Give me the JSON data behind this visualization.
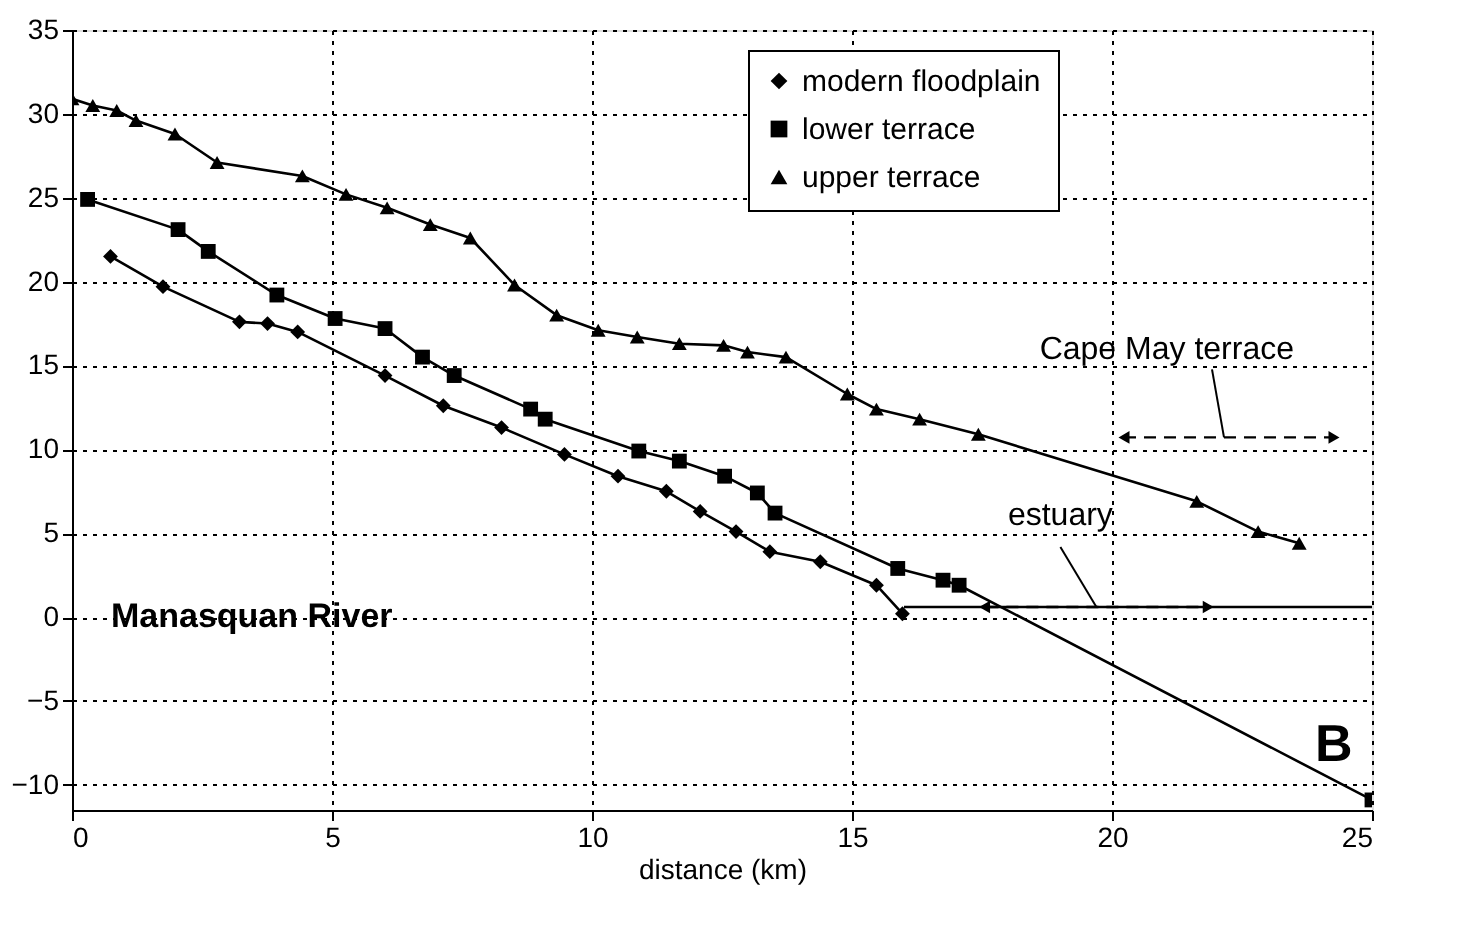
{
  "chart_data": {
    "type": "line",
    "xlabel": "distance (km)",
    "series": [
      {
        "name": "modern floodplain",
        "color": "#000000",
        "marker": "diamond",
        "x": [
          0.74,
          1.75,
          3.22,
          3.76,
          4.34,
          6.02,
          7.14,
          8.26,
          9.47,
          10.5,
          11.43,
          12.08,
          12.77,
          13.42,
          14.39,
          15.47,
          15.97
        ],
        "values": [
          21.5,
          19.7,
          17.6,
          17.5,
          17.0,
          14.4,
          12.6,
          11.3,
          9.7,
          8.4,
          7.5,
          6.3,
          5.1,
          3.9,
          3.3,
          1.9,
          0.2
        ]
      },
      {
        "name": "lower terrace",
        "color": "#000000",
        "marker": "square",
        "x": [
          0.3,
          2.04,
          2.62,
          3.94,
          5.06,
          6.02,
          6.74,
          7.35,
          8.82,
          9.1,
          10.9,
          11.68,
          12.55,
          13.18,
          13.52,
          15.88,
          16.75,
          17.06,
          25
        ],
        "values": [
          24.9,
          23.1,
          21.8,
          19.2,
          17.8,
          17.2,
          15.5,
          14.4,
          12.4,
          11.8,
          9.9,
          9.3,
          8.4,
          7.4,
          6.2,
          2.9,
          2.2,
          1.9,
          -10.9
        ]
      },
      {
        "name": "upper terrace",
        "color": "#000000",
        "marker": "triangle",
        "x": [
          0.0,
          0.4,
          0.86,
          1.23,
          1.98,
          2.79,
          4.43,
          5.27,
          6.06,
          6.89,
          7.66,
          8.51,
          9.32,
          10.12,
          10.87,
          11.68,
          12.53,
          12.99,
          13.73,
          14.91,
          15.47,
          16.3,
          17.43,
          21.63,
          22.81,
          23.6
        ],
        "values": [
          30.9,
          30.5,
          30.2,
          29.6,
          28.8,
          27.1,
          26.3,
          25.2,
          24.4,
          23.4,
          22.6,
          19.8,
          18.0,
          17.1,
          16.7,
          16.3,
          16.2,
          15.8,
          15.5,
          13.3,
          12.4,
          11.8,
          10.9,
          6.9,
          5.1,
          4.4
        ]
      },
      {
        "color": "#000000",
        "marker": "none",
        "x": [
          16,
          25
        ],
        "values": [
          0.6,
          0.6
        ]
      }
    ],
    "xlim": [
      0,
      25
    ],
    "xticks": [
      0,
      5,
      10,
      15,
      20,
      25
    ],
    "ylim": [
      -11.5,
      35
    ],
    "yticks": [
      -10,
      -5,
      0,
      5,
      10,
      15,
      20,
      25,
      30,
      35
    ],
    "grid": true,
    "legend": "top right",
    "annotations": [
      "Manasquan River",
      "B",
      "Cape May terrace",
      {
        "text": "estuary",
        "x": 19.7,
        "y": 0.6
      }
    ]
  }
}
